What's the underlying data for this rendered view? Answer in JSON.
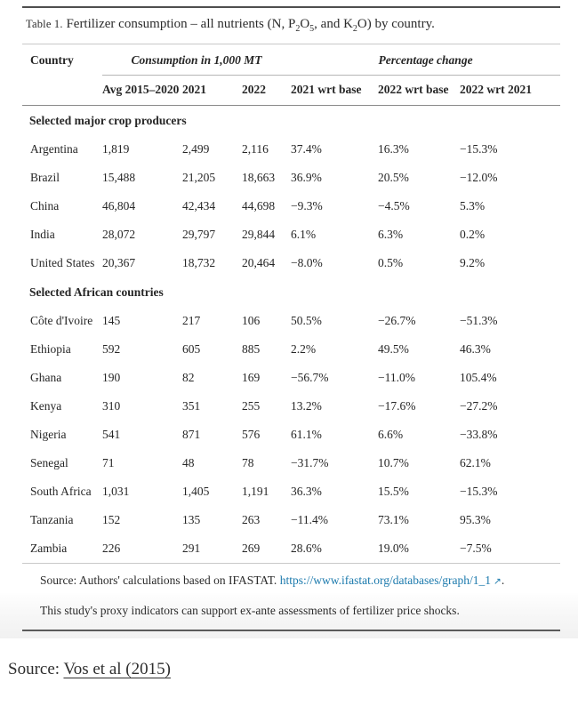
{
  "colors": {
    "link_blue": "#1c7aad",
    "text": "#262626",
    "rule_dark": "#4e4e4e",
    "rule_light": "#c8c8c8",
    "rule_medium": "#8a8a8a"
  },
  "caption": {
    "label": "Table 1.",
    "p1": " Fertilizer consumption – all nutrients (N, P",
    "s1": "2",
    "p2": "O",
    "s2": "5",
    "p3": ", and K",
    "s3": "2",
    "p4": "O) by country."
  },
  "table": {
    "header": {
      "country": "Country",
      "group_consumption": "Consumption in 1,000 MT",
      "group_percentage": "Percentage change",
      "sub": [
        "Avg 2015–2020",
        "2021",
        "2022",
        "2021 wrt base",
        "2022 wrt base",
        "2022 wrt 2021"
      ]
    },
    "sections": [
      {
        "label": "Selected major crop producers",
        "rows": [
          {
            "country": "Argentina",
            "values": [
              "1,819",
              "2,499",
              "2,116",
              "37.4%",
              "16.3%",
              "−15.3%"
            ]
          },
          {
            "country": "Brazil",
            "values": [
              "15,488",
              "21,205",
              "18,663",
              "36.9%",
              "20.5%",
              "−12.0%"
            ]
          },
          {
            "country": "China",
            "values": [
              "46,804",
              "42,434",
              "44,698",
              "−9.3%",
              "−4.5%",
              "5.3%"
            ]
          },
          {
            "country": "India",
            "values": [
              "28,072",
              "29,797",
              "29,844",
              "6.1%",
              "6.3%",
              "0.2%"
            ]
          },
          {
            "country": "United States",
            "values": [
              "20,367",
              "18,732",
              "20,464",
              "−8.0%",
              "0.5%",
              "9.2%"
            ]
          }
        ]
      },
      {
        "label": "Selected African countries",
        "rows": [
          {
            "country": "Côte d'Ivoire",
            "values": [
              "145",
              "217",
              "106",
              "50.5%",
              "−26.7%",
              "−51.3%"
            ]
          },
          {
            "country": "Ethiopia",
            "values": [
              "592",
              "605",
              "885",
              "2.2%",
              "49.5%",
              "46.3%"
            ]
          },
          {
            "country": "Ghana",
            "values": [
              "190",
              "82",
              "169",
              "−56.7%",
              "−11.0%",
              "105.4%"
            ]
          },
          {
            "country": "Kenya",
            "values": [
              "310",
              "351",
              "255",
              "13.2%",
              "−17.6%",
              "−27.2%"
            ]
          },
          {
            "country": "Nigeria",
            "values": [
              "541",
              "871",
              "576",
              "61.1%",
              "6.6%",
              "−33.8%"
            ]
          },
          {
            "country": "Senegal",
            "values": [
              "71",
              "48",
              "78",
              "−31.7%",
              "10.7%",
              "62.1%"
            ]
          },
          {
            "country": "South Africa",
            "values": [
              "1,031",
              "1,405",
              "1,191",
              "36.3%",
              "15.5%",
              "−15.3%"
            ]
          },
          {
            "country": "Tanzania",
            "values": [
              "152",
              "135",
              "263",
              "−11.4%",
              "73.1%",
              "95.3%"
            ]
          },
          {
            "country": "Zambia",
            "values": [
              "226",
              "291",
              "269",
              "28.6%",
              "19.0%",
              "−7.5%"
            ]
          }
        ]
      }
    ]
  },
  "notes": {
    "source": {
      "prefix": "Source: Authors' calculations based on IFASTAT. ",
      "link": "https://www.ifastat.org/databases/graph/1_1",
      "icon": "↗",
      "suffix": "."
    },
    "study": "This study's proxy indicators can support ex-ante assessments of fertilizer price shocks."
  },
  "bottom": {
    "prefix": "Source: ",
    "link": "Vos et al (2015)"
  }
}
